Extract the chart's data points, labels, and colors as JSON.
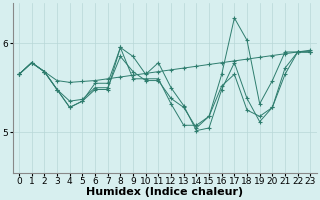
{
  "background_color": "#d7efef",
  "line_color": "#2e7d6e",
  "grid_color": "#b8d8d8",
  "xlabel": "Humidex (Indice chaleur)",
  "xlabel_fontsize": 8,
  "tick_fontsize": 6.5,
  "ytick_labels": [
    "5",
    "6"
  ],
  "ytick_values": [
    5.0,
    6.0
  ],
  "ylim": [
    4.55,
    6.45
  ],
  "xlim": [
    -0.5,
    23.5
  ],
  "xtick_values": [
    0,
    1,
    2,
    3,
    4,
    5,
    6,
    7,
    8,
    9,
    10,
    11,
    12,
    13,
    14,
    15,
    16,
    17,
    18,
    19,
    20,
    21,
    22,
    23
  ],
  "series": [
    [
      5.65,
      5.78,
      5.68,
      5.58,
      5.56,
      5.57,
      5.58,
      5.6,
      5.62,
      5.64,
      5.66,
      5.68,
      5.7,
      5.72,
      5.74,
      5.76,
      5.78,
      5.8,
      5.82,
      5.84,
      5.86,
      5.88,
      5.9,
      5.92
    ],
    [
      5.65,
      5.78,
      5.68,
      5.48,
      5.35,
      5.37,
      5.5,
      5.5,
      5.85,
      5.68,
      5.58,
      5.58,
      5.38,
      5.28,
      5.05,
      5.18,
      5.52,
      5.65,
      5.25,
      5.18,
      5.28,
      5.65,
      5.9,
      5.9
    ],
    [
      5.65,
      5.78,
      5.68,
      5.48,
      5.28,
      5.35,
      5.48,
      5.48,
      5.95,
      5.85,
      5.65,
      5.78,
      5.5,
      5.3,
      5.02,
      5.05,
      5.48,
      5.78,
      5.38,
      5.12,
      5.28,
      5.72,
      5.9,
      5.9
    ],
    [
      5.65,
      5.78,
      5.68,
      5.48,
      5.28,
      5.35,
      5.55,
      5.55,
      5.95,
      5.6,
      5.6,
      5.6,
      5.32,
      5.08,
      5.08,
      5.18,
      5.65,
      6.28,
      6.03,
      5.32,
      5.58,
      5.9,
      5.9,
      5.9
    ]
  ],
  "figsize": [
    3.2,
    2.0
  ],
  "dpi": 100
}
